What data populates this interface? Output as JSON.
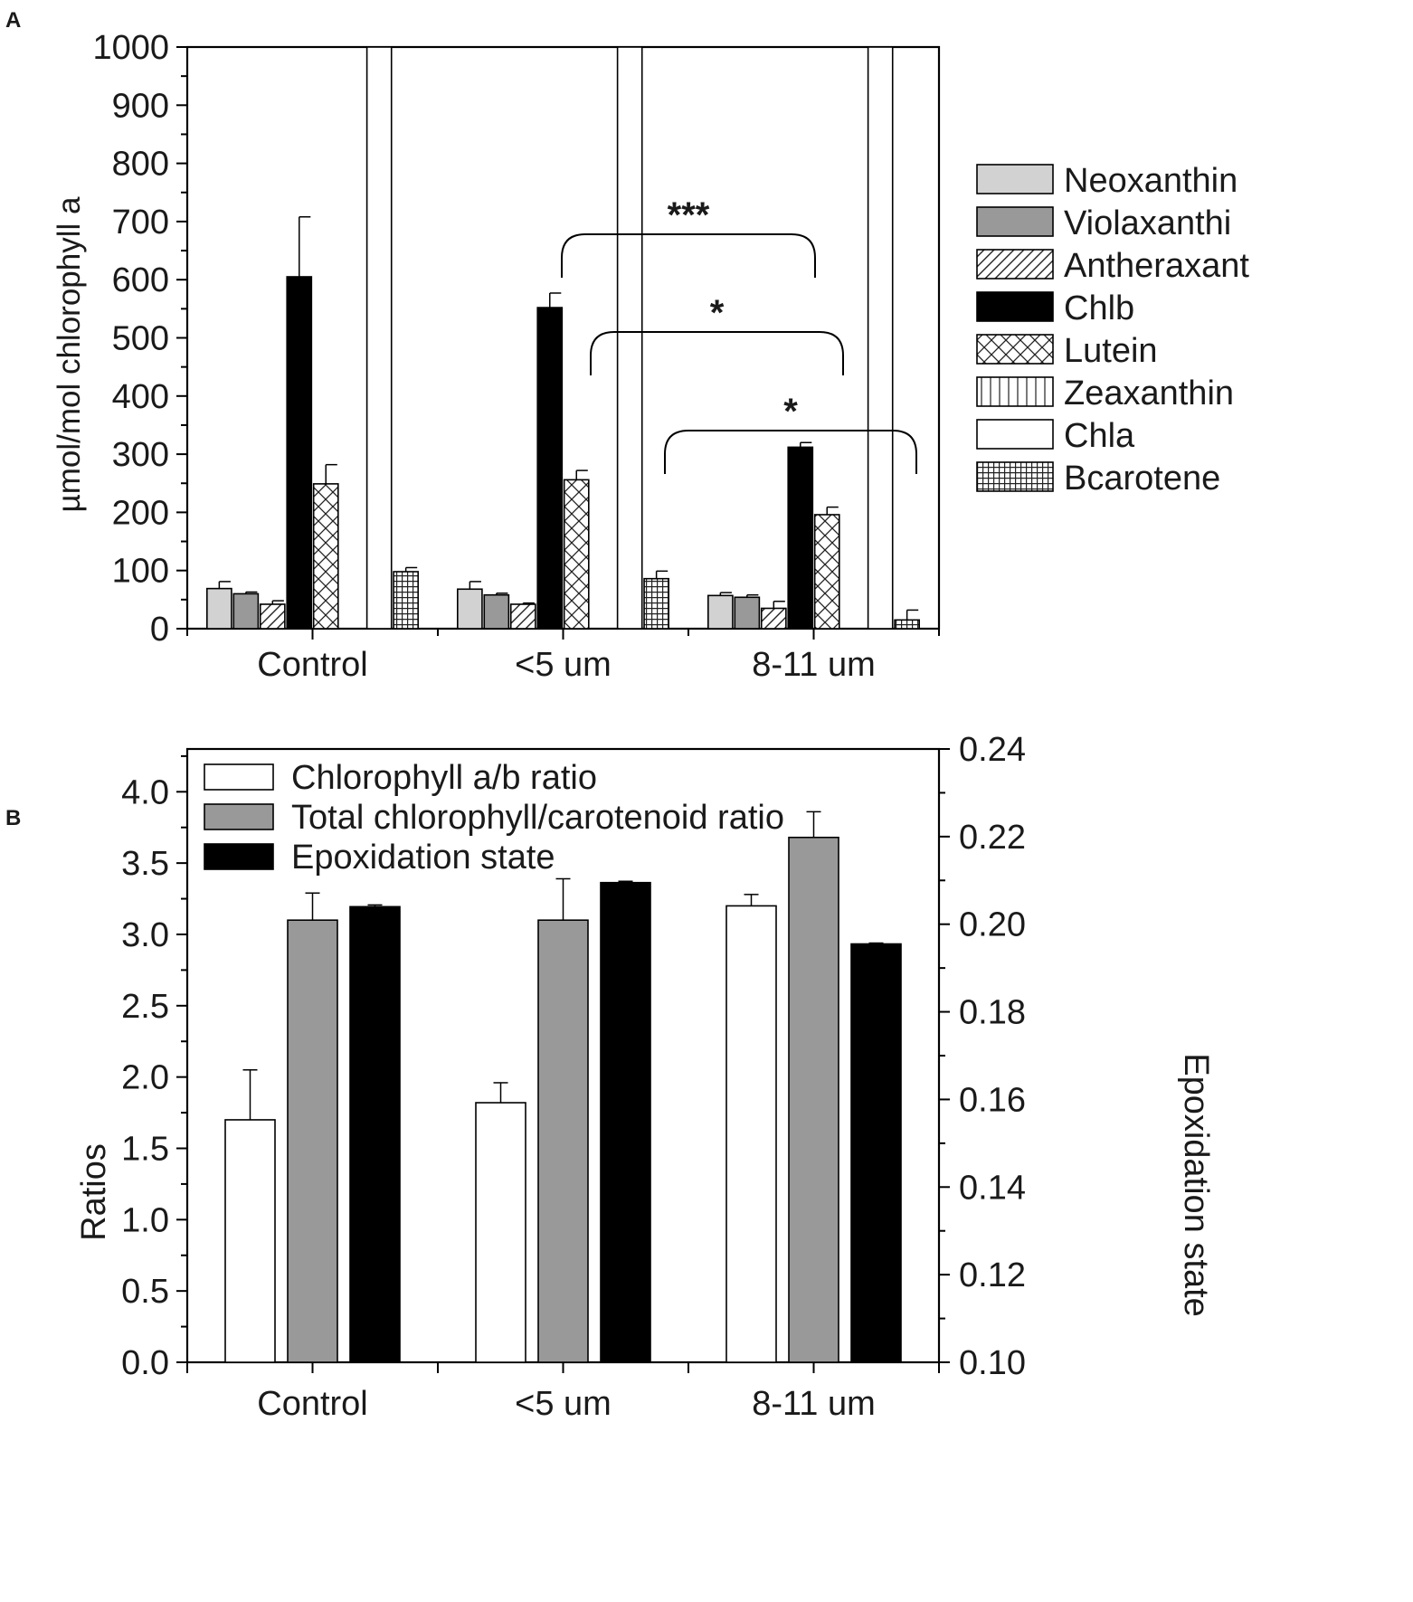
{
  "chart_data": [
    {
      "panel": "A",
      "type": "bar",
      "ylabel": "µmol/mol chlorophyll a",
      "xlabel": "",
      "ylim": [
        0,
        1000
      ],
      "yticks": [
        0,
        100,
        200,
        300,
        400,
        500,
        600,
        700,
        800,
        900,
        1000
      ],
      "categories": [
        "Control",
        "<5 um",
        "8-11 um"
      ],
      "legend_position": "right",
      "series": [
        {
          "name": "Neoxanthin",
          "fill": "light-gray",
          "values": [
            69,
            68,
            57
          ],
          "errors": [
            12,
            13,
            5
          ]
        },
        {
          "name": "Violaxanthi",
          "fill": "gray",
          "values": [
            60,
            58,
            54
          ],
          "errors": [
            3,
            3,
            4
          ]
        },
        {
          "name": "Antheraxant",
          "fill": "diagonal-hatch",
          "values": [
            42,
            42,
            35
          ],
          "errors": [
            6,
            2,
            12
          ]
        },
        {
          "name": "Chlb",
          "fill": "black",
          "values": [
            605,
            552,
            312
          ],
          "errors": [
            103,
            25,
            8
          ]
        },
        {
          "name": "Lutein",
          "fill": "cross-hatch",
          "values": [
            249,
            256,
            196
          ],
          "errors": [
            33,
            16,
            13
          ]
        },
        {
          "name": "Zeaxanthin",
          "fill": "vertical-lines",
          "values": [
            0,
            0,
            0
          ],
          "errors": [
            0,
            0,
            0
          ]
        },
        {
          "name": "Chla",
          "fill": "white",
          "values": [
            1000,
            1000,
            1000
          ],
          "errors": [
            0,
            0,
            0
          ]
        },
        {
          "name": "Bcarotene",
          "fill": "grid",
          "values": [
            98,
            86,
            15
          ],
          "errors": [
            7,
            13,
            17
          ]
        }
      ],
      "annotations": [
        {
          "text": "***",
          "from": "<5 um",
          "to": "8-11 um",
          "level": 680
        },
        {
          "text": "*",
          "from": "<5 um",
          "to": "8-11 um",
          "level": 510
        },
        {
          "text": "*",
          "from": "<5 um",
          "to": "8-11 um",
          "level": 340
        }
      ]
    },
    {
      "panel": "B",
      "type": "bar",
      "ylabel": "Ratios",
      "y2label": "Epoxidation state",
      "ylim": [
        0,
        4.3
      ],
      "y2lim": [
        0.1,
        0.24
      ],
      "yticks": [
        "0.0",
        "0.5",
        "1.0",
        "1.5",
        "2.0",
        "2.5",
        "3.0",
        "3.5",
        "4.0"
      ],
      "y2ticks": [
        "0.10",
        "0.12",
        "0.14",
        "0.16",
        "0.18",
        "0.20",
        "0.22",
        "0.24"
      ],
      "categories": [
        "Control",
        "<5 um",
        "8-11 um"
      ],
      "legend_position": "top-left",
      "series": [
        {
          "name": "Chlorophyll a/b ratio",
          "fill": "white",
          "axis": "left",
          "values": [
            1.7,
            1.82,
            3.2
          ],
          "errors": [
            0.35,
            0.14,
            0.08
          ]
        },
        {
          "name": "Total chlorophyll/carotenoid ratio",
          "fill": "gray",
          "axis": "left",
          "values": [
            3.1,
            3.1,
            3.68
          ],
          "errors": [
            0.19,
            0.29,
            0.18
          ]
        },
        {
          "name": "Epoxidation state",
          "fill": "black",
          "axis": "right",
          "values": [
            0.204,
            0.2095,
            0.1955
          ],
          "errors": [
            0.0004,
            0.0003,
            0.0002
          ]
        }
      ]
    }
  ],
  "colors": {
    "light_gray": "#d2d2d2",
    "gray": "#999999",
    "black": "#000000",
    "white": "#ffffff"
  }
}
